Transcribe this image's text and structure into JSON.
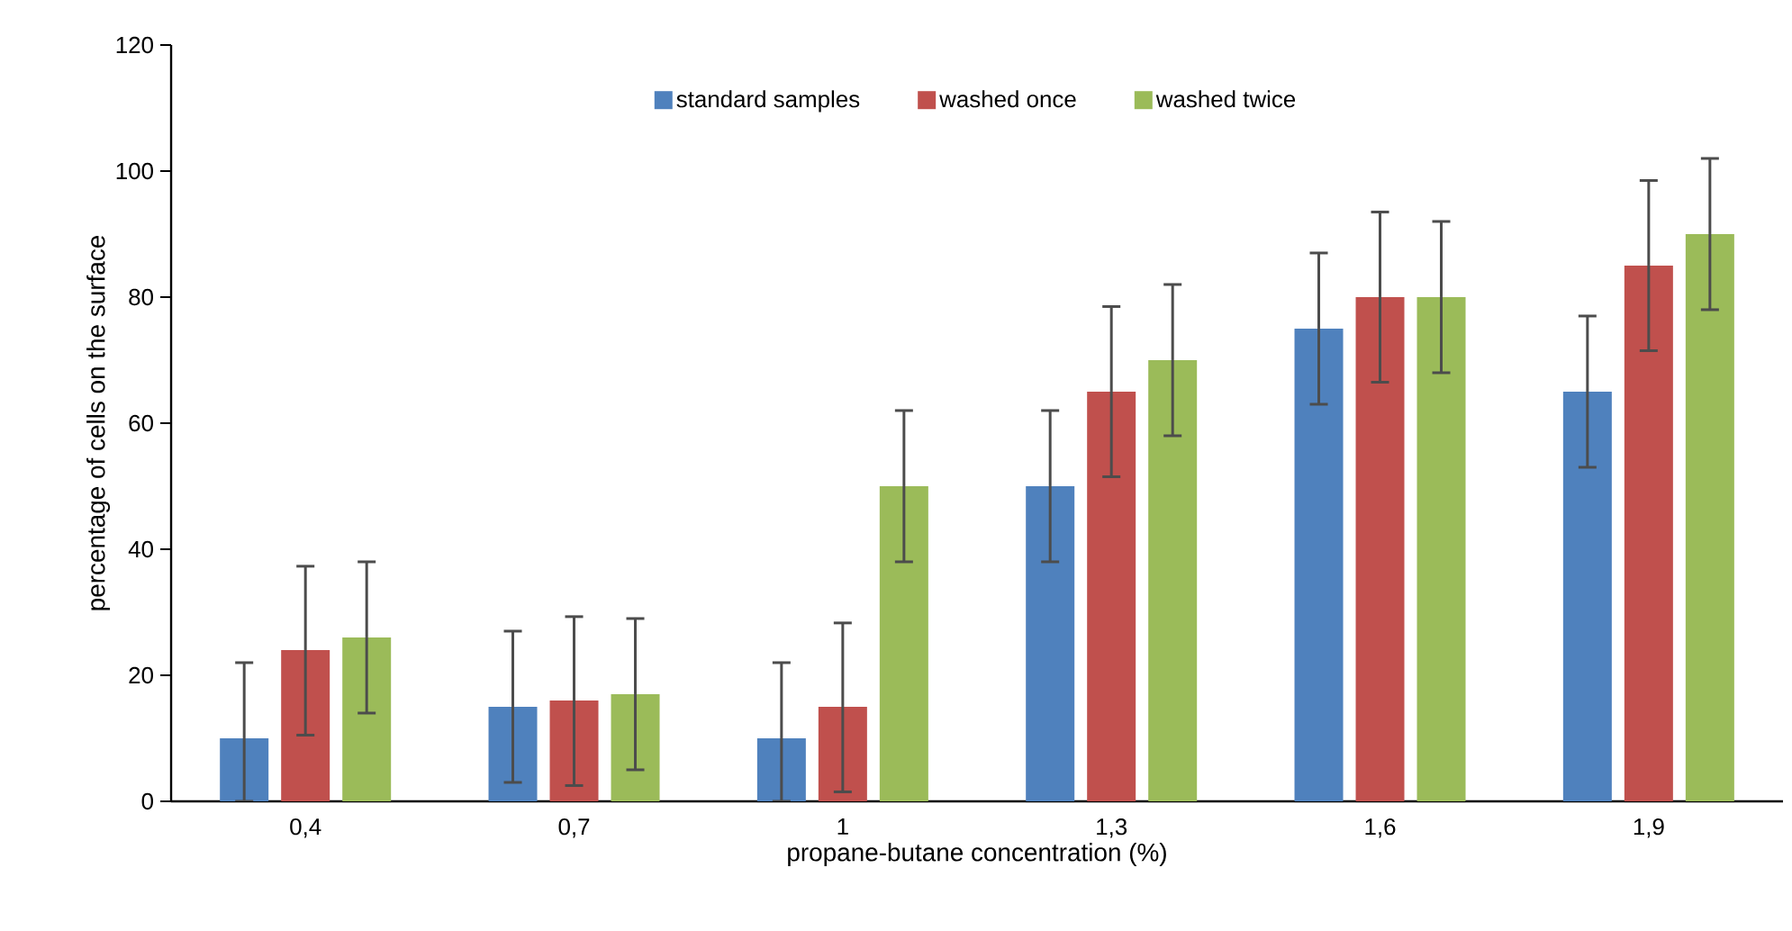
{
  "chart_data": {
    "type": "bar",
    "xlabel": "propane-butane concentration (%)",
    "ylabel": "percentage of cells on the surface",
    "categories": [
      "0,4",
      "0,7",
      "1",
      "1,3",
      "1,6",
      "1,9"
    ],
    "ylim": [
      0,
      120
    ],
    "yticks": [
      0,
      20,
      40,
      60,
      80,
      100,
      120
    ],
    "legend": "top",
    "grid": false,
    "series": [
      {
        "name": "standard samples",
        "color": "#4f81bd",
        "values": [
          10,
          15,
          10,
          50,
          75,
          65
        ],
        "errors": [
          [
            0,
            22
          ],
          [
            3,
            27
          ],
          [
            0,
            22
          ],
          [
            38,
            62
          ],
          [
            63,
            87
          ],
          [
            53,
            77
          ]
        ]
      },
      {
        "name": "washed once",
        "color": "#c0504d",
        "values": [
          24,
          16,
          15,
          65,
          80,
          85
        ],
        "errors": [
          [
            10.5,
            37.3
          ],
          [
            2.5,
            29.3
          ],
          [
            1.5,
            28.3
          ],
          [
            51.5,
            78.5
          ],
          [
            66.5,
            93.5
          ],
          [
            71.5,
            98.5
          ]
        ]
      },
      {
        "name": "washed twice",
        "color": "#9bbb59",
        "values": [
          26,
          17,
          50,
          70,
          80,
          90
        ],
        "errors": [
          [
            14,
            38
          ],
          [
            5,
            29
          ],
          [
            38,
            62
          ],
          [
            58,
            82
          ],
          [
            68,
            92
          ],
          [
            78,
            102
          ]
        ]
      }
    ]
  }
}
